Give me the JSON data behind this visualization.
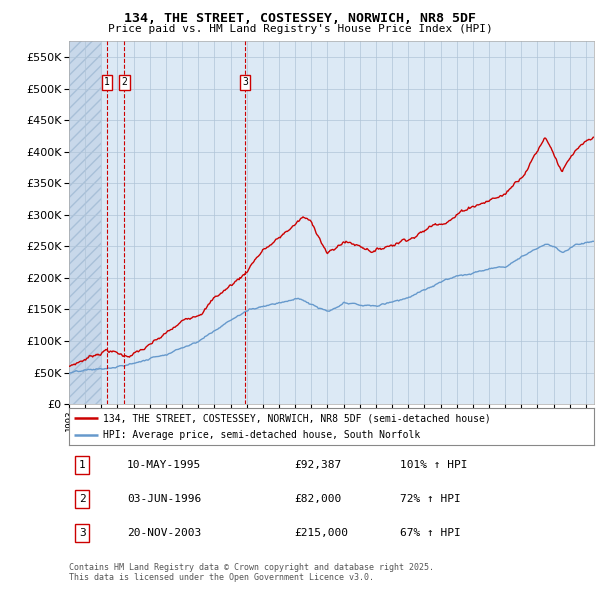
{
  "title": "134, THE STREET, COSTESSEY, NORWICH, NR8 5DF",
  "subtitle": "Price paid vs. HM Land Registry's House Price Index (HPI)",
  "background_color": "#dce9f5",
  "ylim": [
    0,
    575000
  ],
  "yticks": [
    0,
    50000,
    100000,
    150000,
    200000,
    250000,
    300000,
    350000,
    400000,
    450000,
    500000,
    550000
  ],
  "ytick_labels": [
    "£0",
    "£50K",
    "£100K",
    "£150K",
    "£200K",
    "£250K",
    "£300K",
    "£350K",
    "£400K",
    "£450K",
    "£500K",
    "£550K"
  ],
  "sale_color": "#cc0000",
  "hpi_color": "#6699cc",
  "transactions": [
    {
      "num": 1,
      "date_x": 1995.36,
      "price": 92387
    },
    {
      "num": 2,
      "date_x": 1996.42,
      "price": 82000
    },
    {
      "num": 3,
      "date_x": 2003.89,
      "price": 215000
    }
  ],
  "legend_sale_label": "134, THE STREET, COSTESSEY, NORWICH, NR8 5DF (semi-detached house)",
  "legend_hpi_label": "HPI: Average price, semi-detached house, South Norfolk",
  "footer_line1": "Contains HM Land Registry data © Crown copyright and database right 2025.",
  "footer_line2": "This data is licensed under the Open Government Licence v3.0.",
  "xlim_start": 1993,
  "xlim_end": 2025.5,
  "table_rows": [
    {
      "num": 1,
      "date": "10-MAY-1995",
      "price": "£92,387",
      "pct": "101% ↑ HPI"
    },
    {
      "num": 2,
      "date": "03-JUN-1996",
      "price": "£82,000",
      "pct": "72% ↑ HPI"
    },
    {
      "num": 3,
      "date": "20-NOV-2003",
      "price": "£215,000",
      "pct": "67% ↑ HPI"
    }
  ]
}
